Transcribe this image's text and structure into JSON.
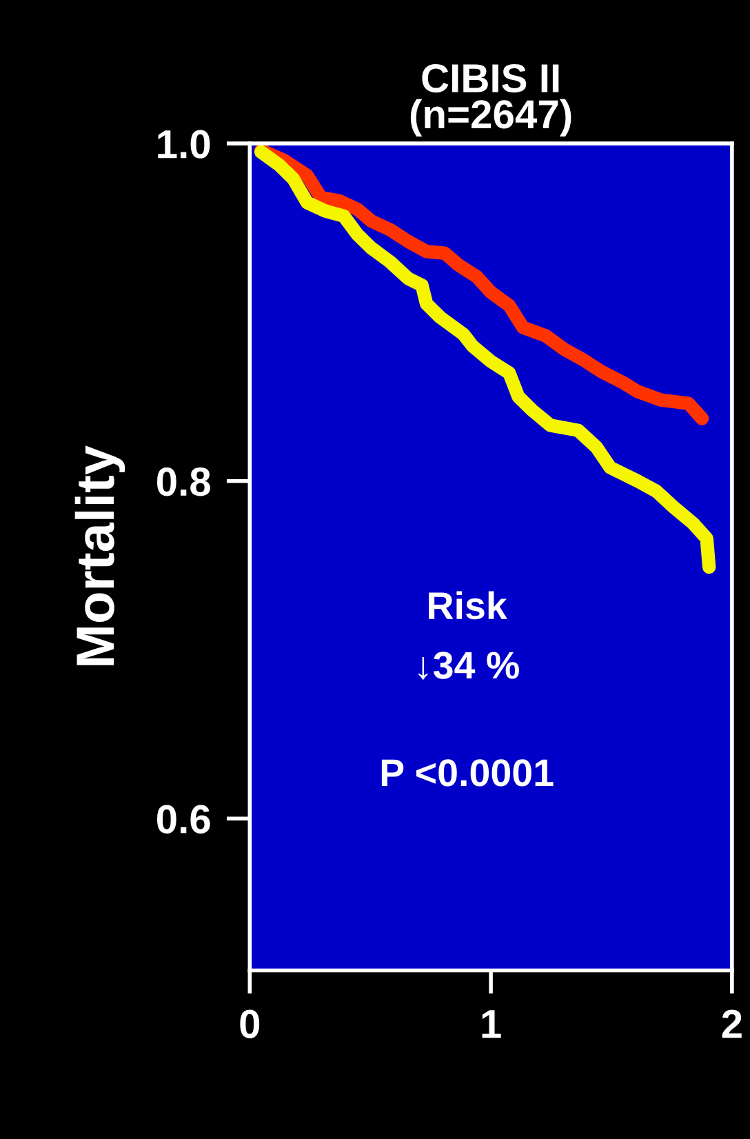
{
  "chart_data": {
    "type": "line",
    "title": "CIBIS II\n(n=2647)",
    "ylabel": "Mortality",
    "xlim": [
      0,
      2
    ],
    "xticks": [
      0,
      1,
      2
    ],
    "ylim": [
      0.51,
      1.0
    ],
    "yticks": [
      {
        "value": 0.6,
        "label": "0.6"
      },
      {
        "value": 0.8,
        "label": "0.8"
      },
      {
        "value": 1.0,
        "label": "1.0"
      }
    ],
    "grid": false,
    "legend": false,
    "marker": "none",
    "line_style": "solid",
    "annotations": [
      "Risk",
      "↓34 %",
      "P <0.0001"
    ],
    "series": [
      {
        "color": "#ff3300",
        "x": [
          0.047,
          0.143,
          0.238,
          0.295,
          0.371,
          0.447,
          0.505,
          0.581,
          0.657,
          0.733,
          0.809,
          0.866,
          0.942,
          0.999,
          1.076,
          1.133,
          1.228,
          1.305,
          1.381,
          1.457,
          1.552,
          1.609,
          1.705,
          1.819,
          1.876
        ],
        "values": [
          0.996,
          0.99,
          0.981,
          0.968,
          0.966,
          0.961,
          0.954,
          0.949,
          0.942,
          0.936,
          0.935,
          0.928,
          0.921,
          0.912,
          0.904,
          0.891,
          0.886,
          0.878,
          0.872,
          0.865,
          0.858,
          0.853,
          0.848,
          0.846,
          0.837
        ]
      },
      {
        "color": "#f5f500",
        "x": [
          0.047,
          0.124,
          0.181,
          0.238,
          0.314,
          0.39,
          0.447,
          0.505,
          0.581,
          0.657,
          0.714,
          0.733,
          0.79,
          0.886,
          0.924,
          0.999,
          1.076,
          1.114,
          1.171,
          1.247,
          1.362,
          1.438,
          1.495,
          1.609,
          1.686,
          1.762,
          1.838,
          1.895,
          1.905
        ],
        "values": [
          0.995,
          0.987,
          0.979,
          0.965,
          0.96,
          0.957,
          0.946,
          0.938,
          0.93,
          0.92,
          0.916,
          0.905,
          0.897,
          0.887,
          0.88,
          0.871,
          0.864,
          0.85,
          0.842,
          0.833,
          0.83,
          0.82,
          0.808,
          0.8,
          0.794,
          0.784,
          0.775,
          0.766,
          0.749
        ]
      }
    ]
  }
}
